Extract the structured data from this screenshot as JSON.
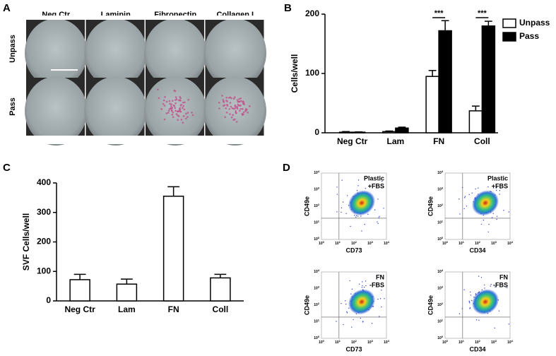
{
  "panels": {
    "a": "A",
    "b": "B",
    "c": "C",
    "d": "D"
  },
  "panel_a": {
    "columns": [
      "Neg Ctr",
      "Laminin",
      "Fibronectin",
      "Collagen I"
    ],
    "rows": [
      "Unpass",
      "Pass"
    ]
  },
  "chart_data": [
    {
      "type": "bar",
      "ylabel": "Cells/well",
      "categories": [
        "Neg Ctr",
        "Lam",
        "FN",
        "Coll"
      ],
      "series": [
        {
          "name": "Unpass",
          "color": "#ffffff",
          "values": [
            1,
            2,
            95,
            37
          ],
          "errors": [
            1,
            1,
            10,
            8
          ]
        },
        {
          "name": "Pass",
          "color": "#000000",
          "values": [
            1,
            8,
            172,
            180
          ],
          "errors": [
            0.5,
            1.5,
            17,
            8
          ]
        }
      ],
      "ylim": [
        0,
        200
      ],
      "yticks": [
        0,
        100,
        200
      ],
      "annotations": [
        "***",
        "***"
      ],
      "legend": "right"
    },
    {
      "type": "bar",
      "ylabel": "SVF Cells/well",
      "categories": [
        "Neg Ctr",
        "Lam",
        "FN",
        "Coll"
      ],
      "color": "#ffffff",
      "values": [
        72,
        57,
        355,
        78
      ],
      "errors": [
        18,
        17,
        32,
        12
      ],
      "ylim": [
        0,
        400
      ],
      "yticks": [
        0,
        100,
        200,
        300,
        400
      ]
    }
  ],
  "panel_d": {
    "tick_base": "10",
    "tick_exponents": [
      "0",
      "1",
      "2",
      "3",
      "4"
    ],
    "plots": [
      {
        "y_label": "CD49e",
        "x_label": "CD73",
        "note": [
          "Plastic",
          "+FBS"
        ]
      },
      {
        "y_label": "CD49e",
        "x_label": "CD34",
        "note": [
          "Plastic",
          "+FBS"
        ]
      },
      {
        "y_label": "CD49e",
        "x_label": "CD73",
        "note": [
          "FN",
          "-FBS"
        ]
      },
      {
        "y_label": "CD49e",
        "x_label": "CD34",
        "note": [
          "FN",
          "-FBS"
        ]
      }
    ]
  }
}
